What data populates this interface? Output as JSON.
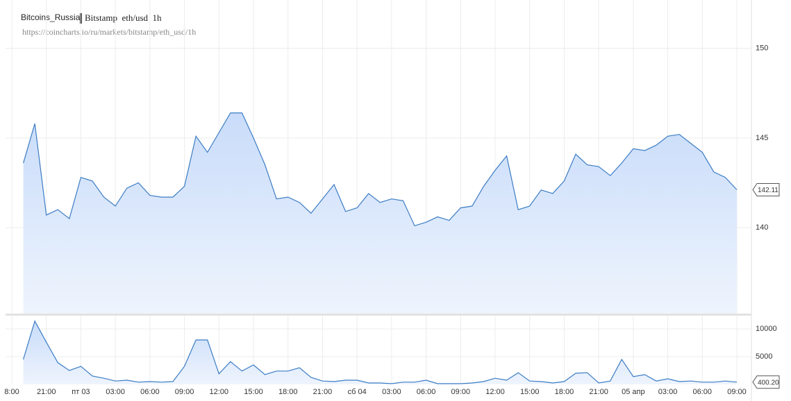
{
  "header": {
    "user": "Bitcoins_Russia",
    "title": "Bitstamp  eth/usd  1h",
    "url": "https://coincharts.io/ru/markets/bitstamp/eth_usd/1h"
  },
  "chart_data": [
    {
      "type": "area",
      "color": "#3b7cc4",
      "ylim": [
        135.2,
        152.7
      ],
      "yticks": [
        140,
        145,
        150
      ],
      "grid": true,
      "values": [
        null,
        143.6,
        145.8,
        140.7,
        141.0,
        140.5,
        142.8,
        142.6,
        141.7,
        141.2,
        142.2,
        142.5,
        141.8,
        141.7,
        141.7,
        142.3,
        145.1,
        144.2,
        145.3,
        146.4,
        146.4,
        145.0,
        143.5,
        141.6,
        141.7,
        141.4,
        140.8,
        141.6,
        142.4,
        140.9,
        141.1,
        141.9,
        141.4,
        141.6,
        141.5,
        140.1,
        140.3,
        140.6,
        140.4,
        141.1,
        141.2,
        142.3,
        143.2,
        144.0,
        141.0,
        141.2,
        142.1,
        141.9,
        142.6,
        144.1,
        143.5,
        143.4,
        142.9,
        143.6,
        144.4,
        144.3,
        144.6,
        145.1,
        145.2,
        144.7,
        144.2,
        143.1,
        142.8,
        142.11
      ]
    },
    {
      "type": "area",
      "color": "#3b7cc4",
      "ylim": [
        0,
        12375
      ],
      "yticks": [
        5000,
        10000
      ],
      "grid": true,
      "categories": [
        "8:00",
        null,
        null,
        "21:00",
        null,
        null,
        "пт 03",
        null,
        null,
        "03:00",
        null,
        null,
        "06:00",
        null,
        null,
        "09:00",
        null,
        null,
        "12:00",
        null,
        null,
        "15:00",
        null,
        null,
        "18:00",
        null,
        null,
        "21:00",
        null,
        null,
        "сб 04",
        null,
        null,
        "03:00",
        null,
        null,
        "06:00",
        null,
        null,
        "09:00",
        null,
        null,
        "12:00",
        null,
        null,
        "15:00",
        null,
        null,
        "18:00",
        null,
        null,
        "21:00",
        null,
        null,
        "05 апр",
        null,
        null,
        "03:00",
        null,
        null,
        "06:00",
        null,
        null,
        "09:00"
      ],
      "values": [
        null,
        4500,
        11400,
        7600,
        3900,
        2500,
        3250,
        1500,
        1100,
        600,
        750,
        400,
        500,
        400,
        500,
        3250,
        8000,
        8000,
        1900,
        4100,
        2400,
        3500,
        1750,
        2400,
        2400,
        3000,
        1250,
        600,
        500,
        750,
        750,
        250,
        250,
        125,
        400,
        400,
        750,
        125,
        125,
        125,
        250,
        500,
        1100,
        750,
        2100,
        600,
        500,
        250,
        500,
        2000,
        2100,
        250,
        600,
        4500,
        1400,
        1750,
        600,
        1000,
        500,
        600,
        400,
        400,
        600,
        400.2
      ],
      "value_labels": [
        null,
        null,
        null,
        null,
        null,
        null,
        null,
        null,
        null,
        null,
        null,
        null,
        null,
        null,
        null,
        null,
        null,
        null,
        null,
        null,
        null,
        null,
        null,
        null,
        null,
        null,
        null,
        null,
        null,
        null,
        null,
        null,
        null,
        null,
        null,
        null,
        null,
        null,
        null,
        null,
        null,
        null,
        null,
        null,
        null,
        null,
        null,
        null,
        null,
        null,
        null,
        null,
        null,
        null,
        null,
        null,
        null,
        null,
        null,
        null,
        null,
        null,
        null,
        "400.20"
      ]
    }
  ]
}
